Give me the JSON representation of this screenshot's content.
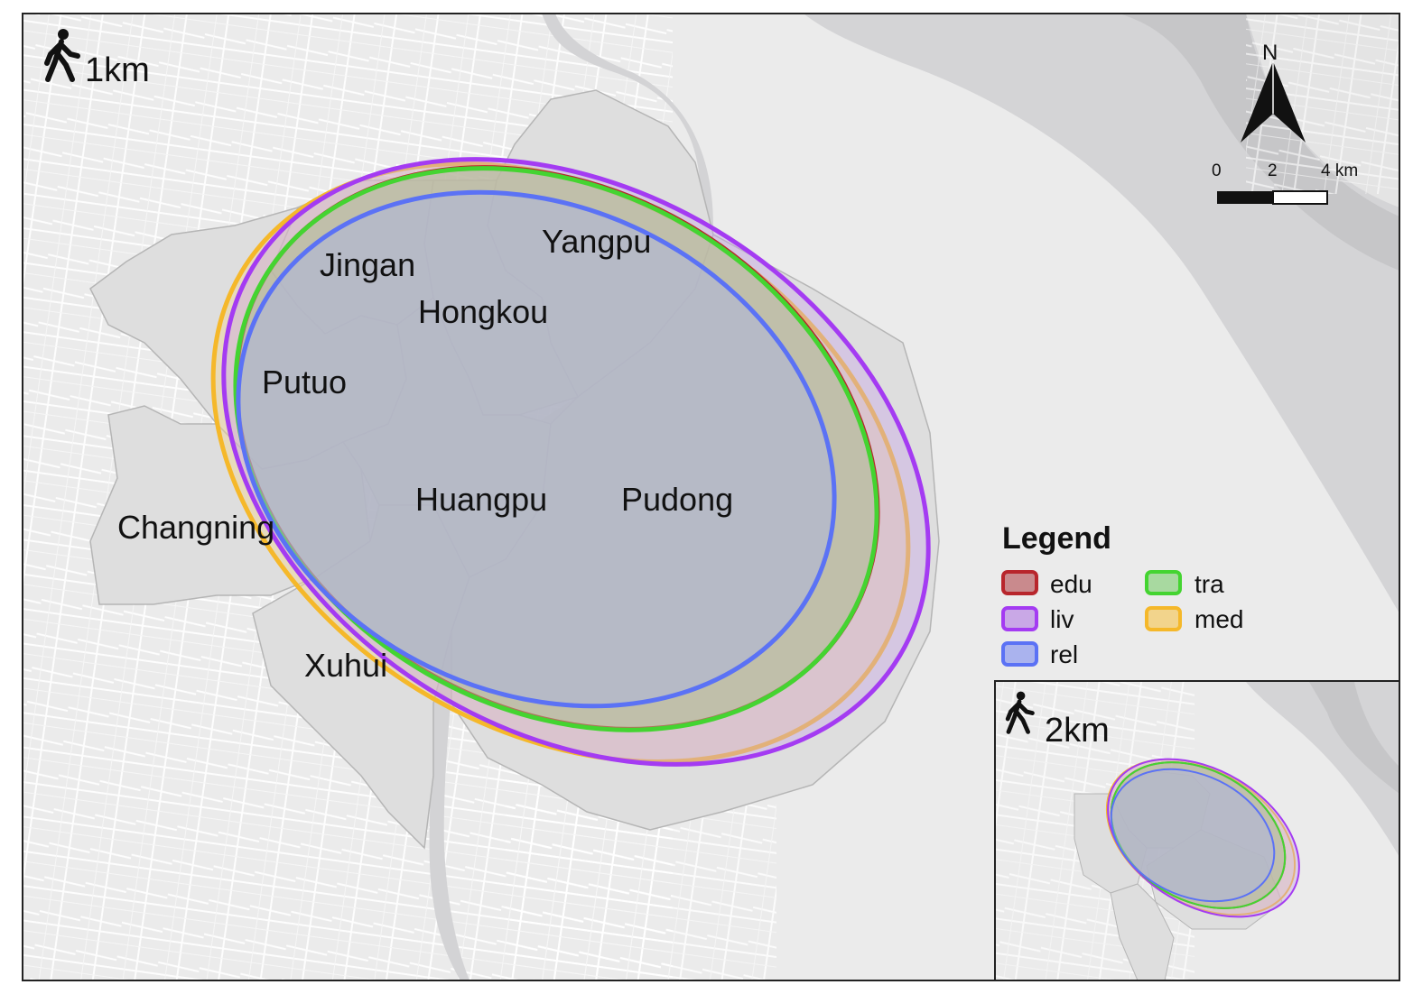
{
  "main_map": {
    "walk_distance": "1km",
    "districts": [
      {
        "name": "Jingan"
      },
      {
        "name": "Yangpu"
      },
      {
        "name": "Hongkou"
      },
      {
        "name": "Putuo"
      },
      {
        "name": "Huangpu"
      },
      {
        "name": "Pudong"
      },
      {
        "name": "Changning"
      },
      {
        "name": "Xuhui"
      }
    ]
  },
  "north_arrow": {
    "label": "N"
  },
  "scale_bar": {
    "ticks": [
      "0",
      "2",
      "4 km"
    ]
  },
  "legend": {
    "title": "Legend",
    "items": [
      {
        "label": "edu",
        "stroke": "#b8262c",
        "fill": "#c98a8d"
      },
      {
        "label": "tra",
        "stroke": "#44d431",
        "fill": "#a8d9a0"
      },
      {
        "label": "liv",
        "stroke": "#a43bf2",
        "fill": "#c9a8e6"
      },
      {
        "label": "med",
        "stroke": "#f5b82a",
        "fill": "#f2d48c"
      },
      {
        "label": "rel",
        "stroke": "#5b72f5",
        "fill": "#aab3ee"
      }
    ]
  },
  "inset_map": {
    "walk_distance": "2km"
  },
  "colors": {
    "map_background": "#ebebeb",
    "river": "#c9c9cb",
    "district": "#dedede",
    "overlap": "#a3868f"
  },
  "icons": [
    "pedestrian-icon",
    "north-arrow-icon"
  ]
}
